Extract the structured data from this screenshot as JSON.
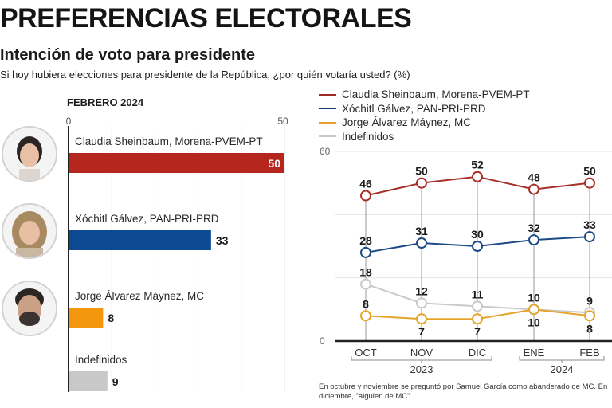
{
  "header": {
    "title": "PREFERENCIAS ELECTORALES",
    "subtitle": "Intención de voto para presidente",
    "question": "Si hoy hubiera elecciones para presidente de la República, ¿por quién votaría usted?  (%)"
  },
  "colors": {
    "sheinbaum": "#b5261e",
    "galvez": "#0d4a93",
    "maynez": "#f2960e",
    "indefinidos": "#c8c8c8"
  },
  "chart_data": [
    {
      "type": "bar",
      "orientation": "horizontal",
      "title": "FEBRERO 2024",
      "xlim": [
        0,
        50
      ],
      "tick_labels": [
        "0",
        "50"
      ],
      "gridlines_every": 10,
      "categories": [
        "Claudia Sheinbaum, Morena-PVEM-PT",
        "Xóchitl Gálvez, PAN-PRI-PRD",
        "Jorge Álvarez Máynez, MC",
        "Indefinidos"
      ],
      "values": [
        50,
        33,
        8,
        9
      ],
      "value_labels": [
        "50",
        "33",
        "8",
        "9"
      ],
      "series_keys": [
        "sheinbaum",
        "galvez",
        "maynez",
        "indefinidos"
      ],
      "avatars": [
        "candidate-sheinbaum-photo",
        "candidate-galvez-photo",
        "candidate-maynez-photo",
        null
      ]
    },
    {
      "type": "line",
      "ylim": [
        0,
        60
      ],
      "y_tick_labels": [
        "0",
        "60"
      ],
      "gridlines": [
        0,
        20,
        40,
        60
      ],
      "x": [
        "OCT",
        "NOV",
        "DIC",
        "ENE",
        "FEB"
      ],
      "year_groups": [
        {
          "label": "2023",
          "months": [
            "OCT",
            "NOV",
            "DIC"
          ]
        },
        {
          "label": "2024",
          "months": [
            "ENE",
            "FEB"
          ]
        }
      ],
      "legend": [
        "Claudia Sheinbaum, Morena-PVEM-PT",
        "Xóchitl Gálvez, PAN-PRI-PRD",
        "Jorge Álvarez Máynez, MC",
        "Indefinidos"
      ],
      "legend_placement": "top",
      "series": [
        {
          "name": "Claudia Sheinbaum, Morena-PVEM-PT",
          "key": "sheinbaum",
          "values": [
            46,
            50,
            52,
            48,
            50
          ],
          "label_pos": [
            "above",
            "above",
            "above",
            "above",
            "above"
          ]
        },
        {
          "name": "Xóchitl Gálvez, PAN-PRI-PRD",
          "key": "galvez",
          "values": [
            28,
            31,
            30,
            32,
            33
          ],
          "label_pos": [
            "above",
            "above",
            "above",
            "above",
            "above"
          ]
        },
        {
          "name": "Jorge Álvarez Máynez, MC",
          "key": "maynez",
          "values": [
            8,
            7,
            7,
            10,
            8
          ],
          "label_pos": [
            "above",
            "below",
            "below",
            "below",
            "below"
          ]
        },
        {
          "name": "Indefinidos",
          "key": "indefinidos",
          "values": [
            18,
            12,
            11,
            10,
            9
          ],
          "label_pos": [
            "above",
            "above",
            "above",
            "above",
            "above"
          ]
        }
      ]
    }
  ],
  "footnote": "En octubre y noviembre se preguntó por Samuel García como abanderado de MC. En diciembre, \"alguien de MC\"."
}
